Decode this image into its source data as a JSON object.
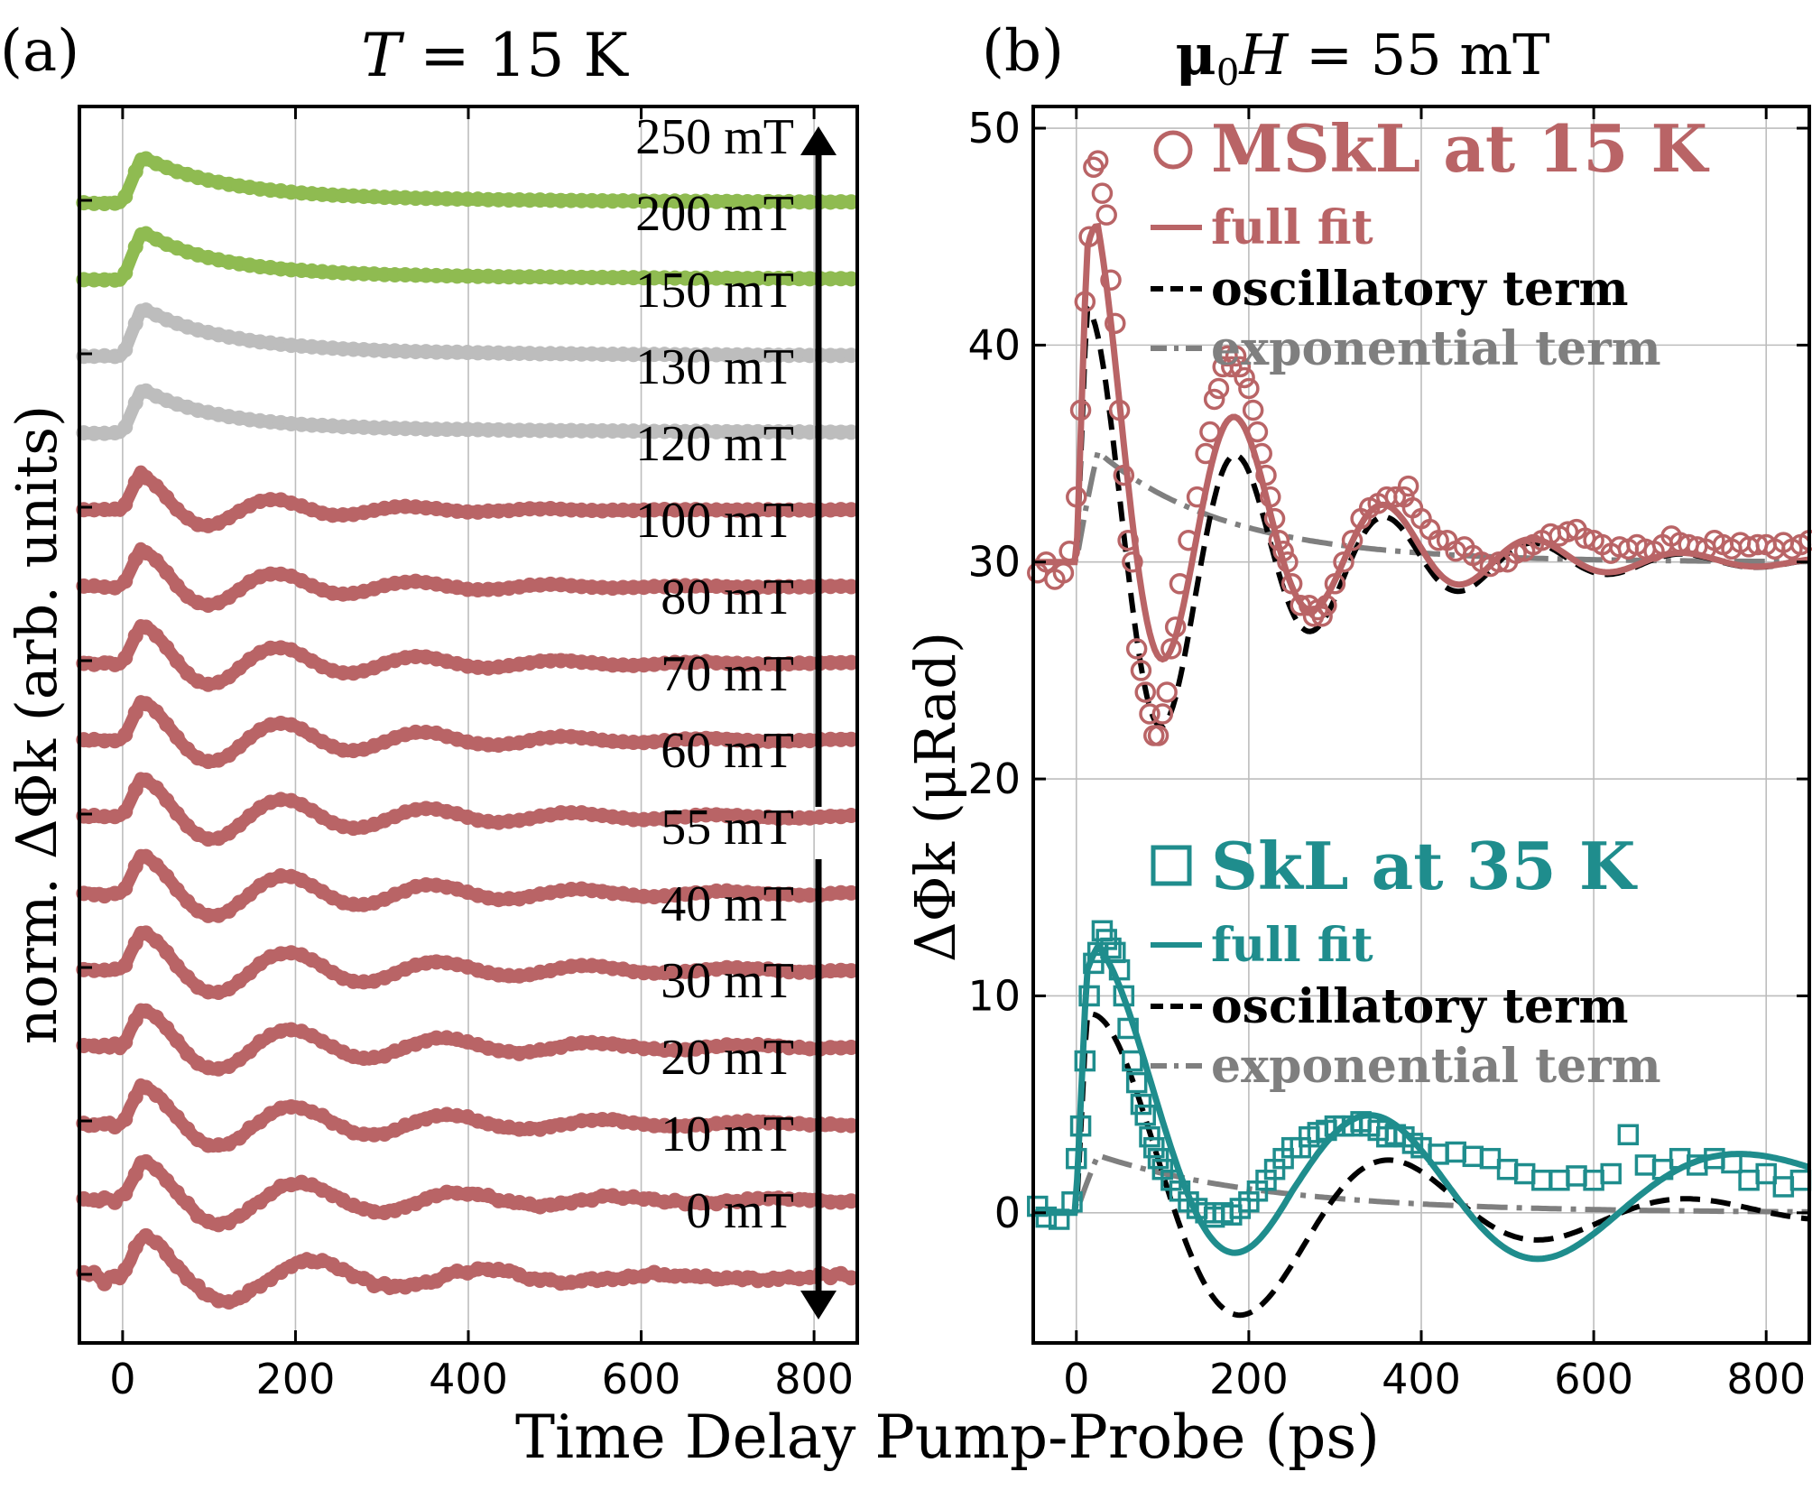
{
  "figure": {
    "xlabel": "Time Delay Pump-Probe (ps)"
  },
  "chart_data": [
    {
      "panel": "(a)",
      "type": "line",
      "title": "T = 15 K",
      "title_italic_var": "T",
      "title_rest": " = 15 K",
      "ylabel": "norm. ΔΦk (arb. units)",
      "xlim": [
        -50,
        850
      ],
      "xticks": [
        0,
        200,
        400,
        600,
        800
      ],
      "arrow_gap_label": "55 mT",
      "colors": {
        "low": "#b96466",
        "mid": "#bdbdbd",
        "high": "#8fbb51"
      },
      "series": [
        {
          "name": "0 mT",
          "baseline": 0.0,
          "color": "low",
          "amp": 0.9,
          "freq_ghz": 5.0,
          "tau": 230,
          "offset": 0.15,
          "noise": 0.12
        },
        {
          "name": "10 mT",
          "baseline": 1.0,
          "color": "low",
          "amp": 0.85,
          "freq_ghz": 5.4,
          "tau": 240,
          "offset": 0.15,
          "noise": 0.07
        },
        {
          "name": "20 mT",
          "baseline": 2.0,
          "color": "low",
          "amp": 0.8,
          "freq_ghz": 5.6,
          "tau": 250,
          "offset": 0.15,
          "noise": 0.05
        },
        {
          "name": "30 mT",
          "baseline": 3.0,
          "color": "low",
          "amp": 0.8,
          "freq_ghz": 5.7,
          "tau": 250,
          "offset": 0.15,
          "noise": 0.04
        },
        {
          "name": "40 mT",
          "baseline": 4.0,
          "color": "low",
          "amp": 0.8,
          "freq_ghz": 5.8,
          "tau": 250,
          "offset": 0.15,
          "noise": 0.03
        },
        {
          "name": "55 mT",
          "baseline": 5.0,
          "color": "low",
          "amp": 0.8,
          "freq_ghz": 5.9,
          "tau": 240,
          "offset": 0.15,
          "noise": 0.03
        },
        {
          "name": "60 mT",
          "baseline": 6.0,
          "color": "low",
          "amp": 0.8,
          "freq_ghz": 6.0,
          "tau": 230,
          "offset": 0.15,
          "noise": 0.025
        },
        {
          "name": "70 mT",
          "baseline": 7.0,
          "color": "low",
          "amp": 0.8,
          "freq_ghz": 6.1,
          "tau": 220,
          "offset": 0.15,
          "noise": 0.025
        },
        {
          "name": "80 mT",
          "baseline": 8.0,
          "color": "low",
          "amp": 0.8,
          "freq_ghz": 6.2,
          "tau": 200,
          "offset": 0.15,
          "noise": 0.02
        },
        {
          "name": "100 mT",
          "baseline": 9.0,
          "color": "low",
          "amp": 0.75,
          "freq_ghz": 6.3,
          "tau": 170,
          "offset": 0.15,
          "noise": 0.02
        },
        {
          "name": "120 mT",
          "baseline": 10.0,
          "color": "low",
          "amp": 0.7,
          "freq_ghz": 6.4,
          "tau": 140,
          "offset": 0.15,
          "noise": 0.02
        },
        {
          "name": "130 mT",
          "baseline": 11.0,
          "color": "mid",
          "amp": 0.0,
          "freq_ghz": 0,
          "tau": 80,
          "offset": 0.85,
          "noise": 0.01
        },
        {
          "name": "150 mT",
          "baseline": 12.0,
          "color": "mid",
          "amp": 0.0,
          "freq_ghz": 0,
          "tau": 90,
          "offset": 0.95,
          "noise": 0.01
        },
        {
          "name": "200 mT",
          "baseline": 13.0,
          "color": "high",
          "amp": 0.0,
          "freq_ghz": 0,
          "tau": 80,
          "offset": 0.95,
          "noise": 0.01
        },
        {
          "name": "250 mT",
          "baseline": 14.0,
          "color": "high",
          "amp": 0.0,
          "freq_ghz": 0,
          "tau": 90,
          "offset": 0.9,
          "noise": 0.01
        }
      ]
    },
    {
      "panel": "(b)",
      "type": "line",
      "title": "μ0H = 55 mT",
      "title_mu": "μ",
      "title_sub": "0",
      "title_var": "H",
      "title_rest": " = 55 mT",
      "ylabel": "ΔΦk (μRad)",
      "xlim": [
        -50,
        850
      ],
      "ylim": [
        -6,
        51
      ],
      "xticks": [
        0,
        200,
        400,
        600,
        800
      ],
      "yticks": [
        0,
        10,
        20,
        30,
        40,
        50
      ],
      "groups": [
        {
          "name": "MSkL at 15 K",
          "marker": "circle",
          "color": "#b96466",
          "baseline": 30,
          "osc_amp": 12.5,
          "freq_ghz": 5.8,
          "phase": 1.0,
          "osc_tau": 200,
          "exp_amp": 6.0,
          "exp_tau": 150,
          "legend": [
            "MSkL at 15 K",
            "full fit",
            "oscillatory term",
            "exponential term"
          ],
          "points": [
            [
              -45,
              29.5
            ],
            [
              -35,
              30
            ],
            [
              -25,
              29.2
            ],
            [
              -15,
              29.5
            ],
            [
              -8,
              30.5
            ],
            [
              0,
              33
            ],
            [
              5,
              37
            ],
            [
              10,
              42
            ],
            [
              15,
              45
            ],
            [
              20,
              48.2
            ],
            [
              25,
              48.5
            ],
            [
              30,
              47
            ],
            [
              35,
              46
            ],
            [
              40,
              43
            ],
            [
              45,
              41
            ],
            [
              50,
              37
            ],
            [
              55,
              34
            ],
            [
              60,
              31
            ],
            [
              65,
              30
            ],
            [
              70,
              26
            ],
            [
              75,
              25
            ],
            [
              80,
              24
            ],
            [
              85,
              23
            ],
            [
              90,
              22
            ],
            [
              95,
              22
            ],
            [
              100,
              23
            ],
            [
              105,
              24
            ],
            [
              110,
              26
            ],
            [
              115,
              27
            ],
            [
              120,
              29
            ],
            [
              130,
              31
            ],
            [
              140,
              33
            ],
            [
              150,
              35
            ],
            [
              155,
              36
            ],
            [
              160,
              37.5
            ],
            [
              165,
              38
            ],
            [
              170,
              39
            ],
            [
              175,
              39.5
            ],
            [
              180,
              39
            ],
            [
              185,
              39.5
            ],
            [
              190,
              39
            ],
            [
              195,
              38.5
            ],
            [
              200,
              38
            ],
            [
              205,
              37
            ],
            [
              210,
              36
            ],
            [
              215,
              35
            ],
            [
              220,
              34
            ],
            [
              225,
              33
            ],
            [
              230,
              32
            ],
            [
              235,
              31
            ],
            [
              240,
              30.5
            ],
            [
              245,
              30
            ],
            [
              250,
              29
            ],
            [
              260,
              28
            ],
            [
              270,
              28
            ],
            [
              275,
              27.5
            ],
            [
              280,
              27.8
            ],
            [
              285,
              27.5
            ],
            [
              290,
              28
            ],
            [
              300,
              29
            ],
            [
              310,
              30
            ],
            [
              320,
              31
            ],
            [
              330,
              32
            ],
            [
              340,
              32.5
            ],
            [
              350,
              32.7
            ],
            [
              360,
              33
            ],
            [
              370,
              33
            ],
            [
              380,
              33
            ],
            [
              385,
              33.5
            ],
            [
              390,
              32.5
            ],
            [
              400,
              32
            ],
            [
              410,
              31.5
            ],
            [
              420,
              31
            ],
            [
              430,
              31
            ],
            [
              440,
              30.5
            ],
            [
              450,
              30.7
            ],
            [
              460,
              30.3
            ],
            [
              470,
              30
            ],
            [
              480,
              29.8
            ],
            [
              490,
              30
            ],
            [
              500,
              30
            ],
            [
              510,
              30.4
            ],
            [
              520,
              30.5
            ],
            [
              530,
              30.8
            ],
            [
              540,
              31
            ],
            [
              550,
              31.3
            ],
            [
              560,
              31.2
            ],
            [
              570,
              31.4
            ],
            [
              580,
              31.5
            ],
            [
              590,
              31.1
            ],
            [
              600,
              31
            ],
            [
              610,
              30.8
            ],
            [
              620,
              30.4
            ],
            [
              630,
              30.7
            ],
            [
              640,
              30.6
            ],
            [
              650,
              30.8
            ],
            [
              660,
              30.6
            ],
            [
              670,
              30.5
            ],
            [
              680,
              30.8
            ],
            [
              690,
              31.2
            ],
            [
              700,
              30.9
            ],
            [
              710,
              30.8
            ],
            [
              720,
              30.7
            ],
            [
              730,
              30.6
            ],
            [
              740,
              31
            ],
            [
              750,
              30.8
            ],
            [
              760,
              30.6
            ],
            [
              770,
              30.9
            ],
            [
              780,
              30.7
            ],
            [
              790,
              30.8
            ],
            [
              800,
              30.8
            ],
            [
              810,
              30.6
            ],
            [
              820,
              30.9
            ],
            [
              830,
              30.6
            ],
            [
              840,
              30.8
            ],
            [
              850,
              31
            ]
          ]
        },
        {
          "name": "SkL at 35 K",
          "marker": "square",
          "color": "#1f8d8d",
          "baseline": 0,
          "osc_amp": 10.0,
          "freq_ghz": 2.9,
          "phase": 1.05,
          "osc_tau": 260,
          "exp_amp": 3.0,
          "exp_tau": 200,
          "slow_amp": 1.8,
          "slow_freq_ghz": 1.8,
          "legend": [
            "SkL at 35 K",
            "full fit",
            "oscillatory term",
            "exponential term"
          ],
          "points": [
            [
              -45,
              0.3
            ],
            [
              -35,
              -0.2
            ],
            [
              -20,
              -0.3
            ],
            [
              -5,
              0.5
            ],
            [
              0,
              2.5
            ],
            [
              5,
              4
            ],
            [
              10,
              7
            ],
            [
              15,
              10
            ],
            [
              20,
              11.5
            ],
            [
              25,
              12
            ],
            [
              30,
              13
            ],
            [
              35,
              12.6
            ],
            [
              40,
              12.2
            ],
            [
              45,
              12
            ],
            [
              50,
              11.2
            ],
            [
              55,
              10
            ],
            [
              60,
              8.5
            ],
            [
              65,
              7
            ],
            [
              70,
              6
            ],
            [
              75,
              5
            ],
            [
              80,
              4.5
            ],
            [
              85,
              3.5
            ],
            [
              90,
              3
            ],
            [
              95,
              2.5
            ],
            [
              100,
              2
            ],
            [
              110,
              1.5
            ],
            [
              120,
              1
            ],
            [
              130,
              0.5
            ],
            [
              140,
              0.2
            ],
            [
              150,
              0
            ],
            [
              160,
              -0.2
            ],
            [
              170,
              0
            ],
            [
              180,
              -0.1
            ],
            [
              190,
              0.2
            ],
            [
              200,
              0.5
            ],
            [
              210,
              1
            ],
            [
              220,
              1.5
            ],
            [
              230,
              2
            ],
            [
              240,
              2.5
            ],
            [
              250,
              3
            ],
            [
              260,
              3
            ],
            [
              270,
              3.5
            ],
            [
              280,
              3.7
            ],
            [
              290,
              3.8
            ],
            [
              300,
              4
            ],
            [
              310,
              4
            ],
            [
              320,
              4
            ],
            [
              330,
              4.2
            ],
            [
              340,
              4
            ],
            [
              350,
              3.8
            ],
            [
              360,
              3.5
            ],
            [
              370,
              3.6
            ],
            [
              380,
              3.5
            ],
            [
              390,
              3.2
            ],
            [
              400,
              3
            ],
            [
              420,
              2.7
            ],
            [
              440,
              2.8
            ],
            [
              460,
              2.6
            ],
            [
              480,
              2.5
            ],
            [
              500,
              2
            ],
            [
              520,
              1.8
            ],
            [
              540,
              1.5
            ],
            [
              560,
              1.5
            ],
            [
              580,
              1.7
            ],
            [
              600,
              1.5
            ],
            [
              620,
              1.8
            ],
            [
              640,
              3.6
            ],
            [
              660,
              2.2
            ],
            [
              680,
              2
            ],
            [
              700,
              2.5
            ],
            [
              720,
              2.2
            ],
            [
              740,
              2.5
            ],
            [
              760,
              2.3
            ],
            [
              780,
              1.5
            ],
            [
              800,
              1.8
            ],
            [
              820,
              1.2
            ],
            [
              840,
              1.5
            ]
          ]
        }
      ]
    }
  ]
}
